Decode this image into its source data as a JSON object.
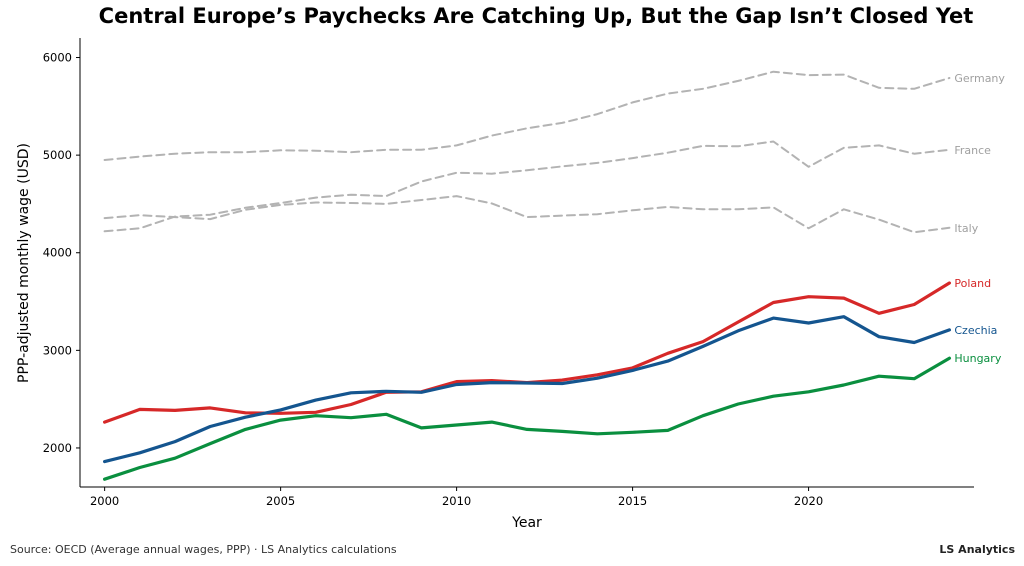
{
  "chart_data": {
    "type": "line",
    "title": "Central Europe’s Paychecks Are Catching Up, But the Gap Isn’t Closed Yet",
    "xlabel": "Year",
    "ylabel": "PPP-adjusted monthly wage (USD)",
    "xlim": [
      1999.3,
      2024.7
    ],
    "ylim": [
      1600,
      6200
    ],
    "xticks": [
      2000,
      2005,
      2010,
      2015,
      2020
    ],
    "yticks": [
      2000,
      3000,
      4000,
      5000,
      6000
    ],
    "grid": false,
    "legend": "direct labels at line ends",
    "x": [
      2000,
      2001,
      2002,
      2003,
      2004,
      2005,
      2006,
      2007,
      2008,
      2009,
      2010,
      2011,
      2012,
      2013,
      2014,
      2015,
      2016,
      2017,
      2018,
      2019,
      2020,
      2021,
      2022,
      2023,
      2024
    ],
    "series": [
      {
        "name": "Germany",
        "color": "#b3b3b3",
        "style": "dashed",
        "values": [
          4950,
          4985,
          5015,
          5030,
          5030,
          5050,
          5045,
          5030,
          5055,
          5055,
          5100,
          5200,
          5275,
          5330,
          5420,
          5540,
          5630,
          5680,
          5760,
          5855,
          5820,
          5825,
          5690,
          5680,
          5790
        ]
      },
      {
        "name": "France",
        "color": "#b3b3b3",
        "style": "dashed",
        "values": [
          4220,
          4250,
          4370,
          4390,
          4460,
          4510,
          4565,
          4595,
          4580,
          4730,
          4820,
          4810,
          4845,
          4885,
          4920,
          4970,
          5025,
          5095,
          5090,
          5140,
          4880,
          5075,
          5100,
          5015,
          5055
        ]
      },
      {
        "name": "Italy",
        "color": "#b3b3b3",
        "style": "dashed",
        "values": [
          4355,
          4385,
          4365,
          4345,
          4440,
          4490,
          4515,
          4510,
          4500,
          4540,
          4580,
          4505,
          4365,
          4380,
          4395,
          4435,
          4470,
          4445,
          4445,
          4465,
          4250,
          4445,
          4340,
          4210,
          4255
        ]
      },
      {
        "name": "Poland",
        "color": "#d62828",
        "style": "solid",
        "values": [
          2265,
          2395,
          2385,
          2410,
          2360,
          2355,
          2365,
          2445,
          2570,
          2575,
          2680,
          2690,
          2670,
          2695,
          2750,
          2820,
          2970,
          3090,
          3290,
          3490,
          3550,
          3535,
          3380,
          3470,
          3690
        ]
      },
      {
        "name": "Czechia",
        "color": "#14558f",
        "style": "solid",
        "values": [
          1860,
          1950,
          2065,
          2220,
          2315,
          2390,
          2490,
          2565,
          2580,
          2570,
          2650,
          2670,
          2665,
          2660,
          2715,
          2795,
          2890,
          3040,
          3200,
          3330,
          3280,
          3345,
          3140,
          3080,
          3210
        ]
      },
      {
        "name": "Hungary",
        "color": "#0a8f3f",
        "style": "solid",
        "values": [
          1680,
          1800,
          1895,
          2045,
          2190,
          2285,
          2330,
          2310,
          2345,
          2205,
          2235,
          2265,
          2190,
          2170,
          2145,
          2160,
          2180,
          2330,
          2450,
          2530,
          2575,
          2645,
          2735,
          2710,
          2920
        ]
      }
    ]
  },
  "footer": {
    "source": "Source: OECD (Average annual wages, PPP) · LS Analytics calculations",
    "brand": "LS Analytics"
  }
}
